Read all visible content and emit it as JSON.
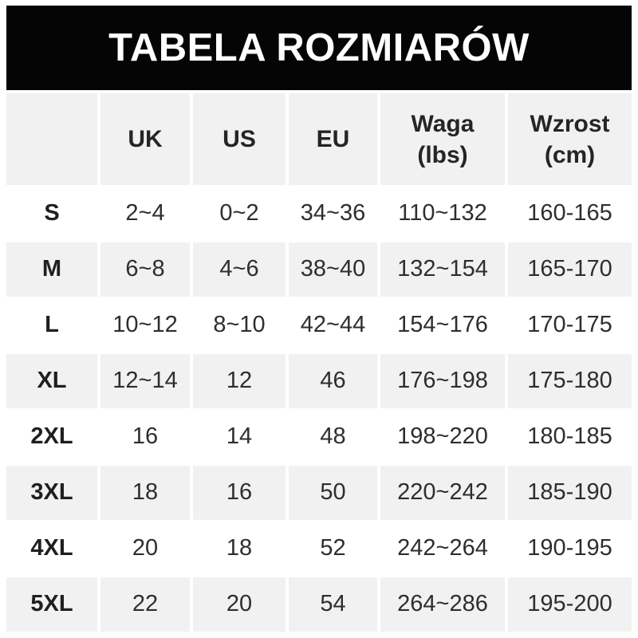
{
  "title": "TABELA ROZMIARÓW",
  "colors": {
    "title_bar_bg": "#050505",
    "title_text": "#ffffff",
    "alt_row_bg": "#f1f1f1",
    "row_bg": "#ffffff",
    "text": "#2e2e2e"
  },
  "chart_data": {
    "type": "table",
    "title": "TABELA ROZMIARÓW",
    "columns": [
      "",
      "UK",
      "US",
      "EU",
      "Waga (lbs)",
      "Wzrost (cm)"
    ],
    "header": {
      "size": "",
      "uk": "UK",
      "us": "US",
      "eu": "EU",
      "waga_line1": "Waga",
      "waga_line2": "(lbs)",
      "wzrost_line1": "Wzrost",
      "wzrost_line2": "(cm)"
    },
    "rows": [
      {
        "size": "S",
        "uk": "2~4",
        "us": "0~2",
        "eu": "34~36",
        "waga": "110~132",
        "wzrost": "160-165"
      },
      {
        "size": "M",
        "uk": "6~8",
        "us": "4~6",
        "eu": "38~40",
        "waga": "132~154",
        "wzrost": "165-170"
      },
      {
        "size": "L",
        "uk": "10~12",
        "us": "8~10",
        "eu": "42~44",
        "waga": "154~176",
        "wzrost": "170-175"
      },
      {
        "size": "XL",
        "uk": "12~14",
        "us": "12",
        "eu": "46",
        "waga": "176~198",
        "wzrost": "175-180"
      },
      {
        "size": "2XL",
        "uk": "16",
        "us": "14",
        "eu": "48",
        "waga": "198~220",
        "wzrost": "180-185"
      },
      {
        "size": "3XL",
        "uk": "18",
        "us": "16",
        "eu": "50",
        "waga": "220~242",
        "wzrost": "185-190"
      },
      {
        "size": "4XL",
        "uk": "20",
        "us": "18",
        "eu": "52",
        "waga": "242~264",
        "wzrost": "190-195"
      },
      {
        "size": "5XL",
        "uk": "22",
        "us": "20",
        "eu": "54",
        "waga": "264~286",
        "wzrost": "195-200"
      }
    ]
  }
}
